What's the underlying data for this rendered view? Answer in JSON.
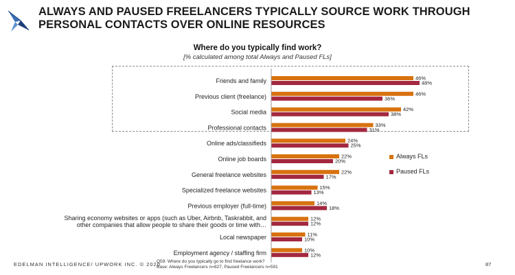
{
  "title": "ALWAYS AND PAUSED FREELANCERS TYPICALLY SOURCE WORK THROUGH PERSONAL CONTACTS OVER ONLINE RESOURCES",
  "chart_data": {
    "type": "bar",
    "orientation": "horizontal",
    "title": "Where do you typically find work?",
    "subtitle": "[% calculated among total Always and Paused FLs]",
    "categories": [
      "Friends and family",
      "Previous client (freelance)",
      "Social media",
      "Professional contacts",
      "Online ads/classifieds",
      "Online job boards",
      "General freelance websites",
      "Specialized freelance websites",
      "Previous employer (full-time)",
      "Sharing economy websites or apps (such as Uber, Airbnb, Taskrabbit, and other companies that allow people to share their goods or time with…",
      "Local newspaper",
      "Employment agency / staffing firm"
    ],
    "series": [
      {
        "name": "Always FLs",
        "color": "#d8720f",
        "values": [
          46,
          46,
          42,
          33,
          24,
          22,
          22,
          15,
          14,
          12,
          11,
          10
        ],
        "labels": [
          "46%",
          "46%",
          "42%",
          "33%",
          "24%",
          "22%",
          "22%",
          "15%",
          "14%",
          "12%",
          "11%",
          "10%"
        ]
      },
      {
        "name": "Paused FLs",
        "color": "#a3283f",
        "values": [
          48,
          36,
          38,
          31,
          25,
          20,
          17,
          13,
          18,
          12,
          10,
          12
        ],
        "labels": [
          "48%",
          "36%",
          "38%",
          "31%",
          "25%",
          "20%",
          "17%",
          "13%",
          "18%",
          "12%",
          "10%",
          "12%"
        ]
      }
    ],
    "highlighted_categories": [
      "Friends and family",
      "Previous client (freelance)",
      "Social media",
      "Professional contacts"
    ],
    "legend_position": "right",
    "grid": false
  },
  "footer": {
    "left": "EDELMAN INTELLIGENCE/ UPWORK INC. © 2020",
    "note_line1": "Q59: Where do you typically go to find freelance work?",
    "note_line2": "Base: Always Freelancers n=827, Paused Freelancers n=591",
    "page_number": "87"
  }
}
